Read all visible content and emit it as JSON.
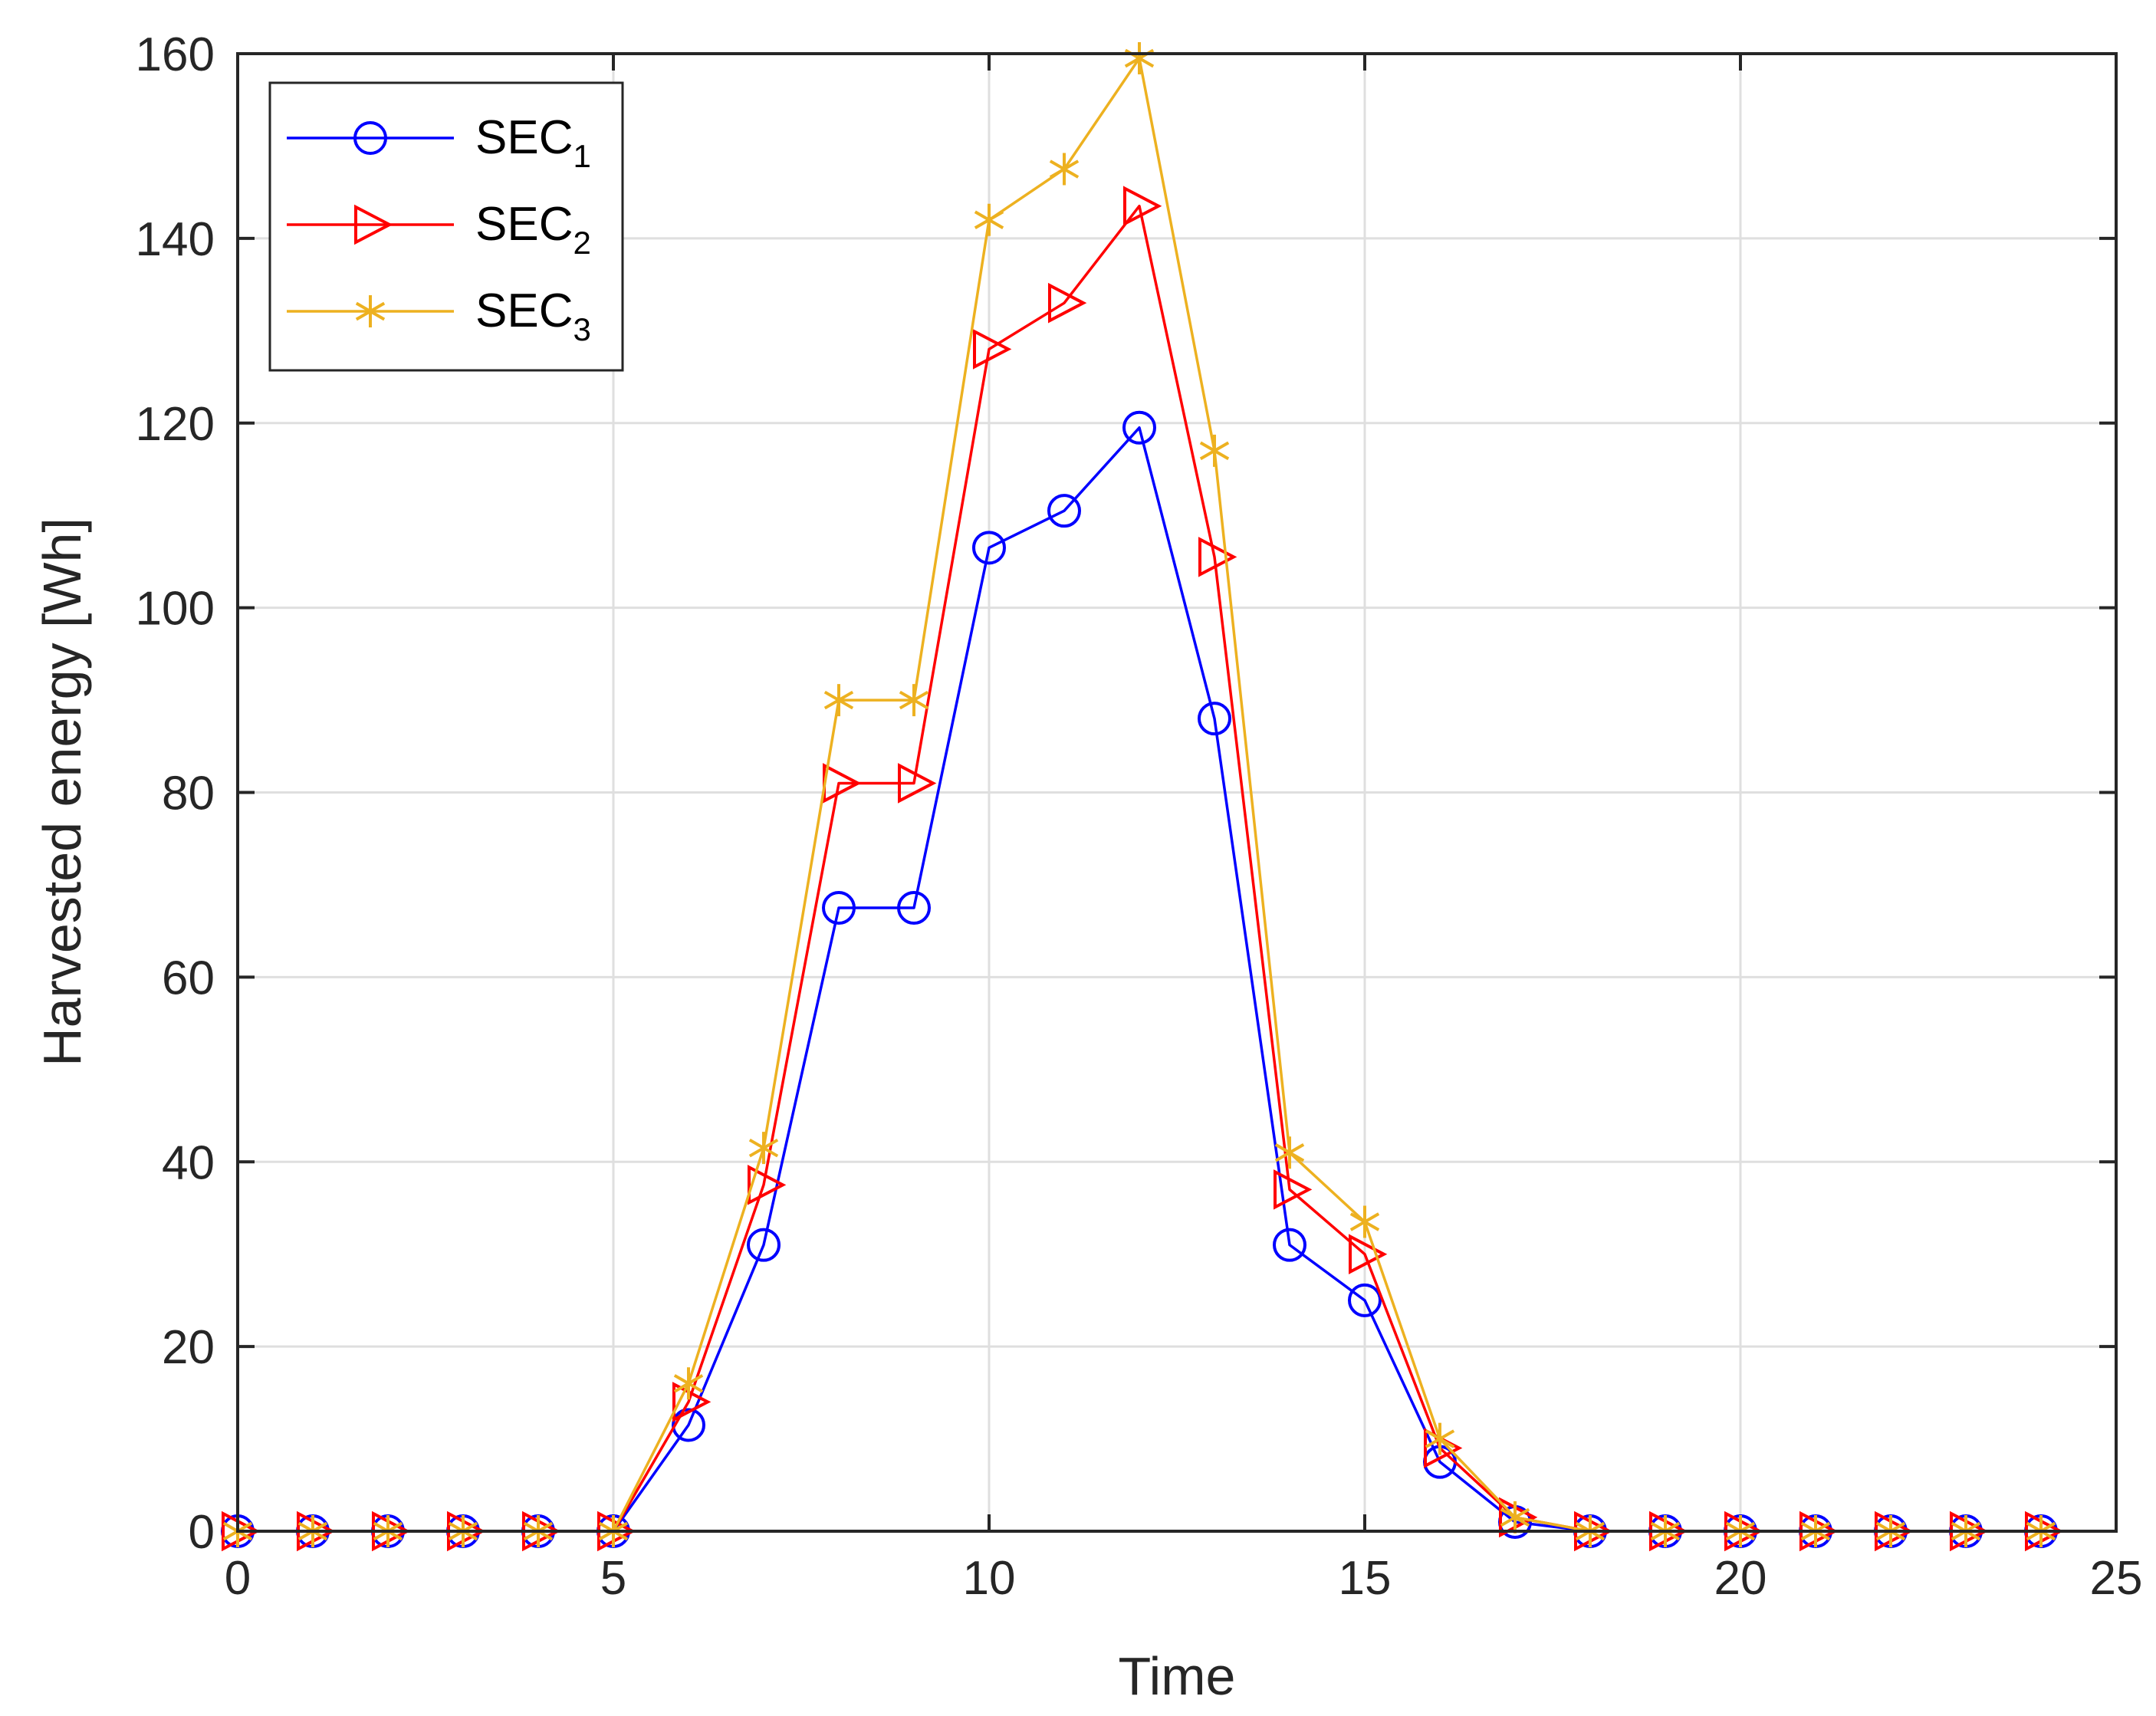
{
  "chart_data": {
    "type": "line",
    "title": "",
    "xlabel": "Time",
    "ylabel": "Harvested energy [Wh]",
    "xlim": [
      0,
      25
    ],
    "ylim": [
      0,
      160
    ],
    "xticks": [
      0,
      5,
      10,
      15,
      20,
      25
    ],
    "yticks": [
      0,
      20,
      40,
      60,
      80,
      100,
      120,
      140,
      160
    ],
    "grid": true,
    "legend_position": "top-left",
    "x": [
      0,
      1,
      2,
      3,
      4,
      5,
      6,
      7,
      8,
      9,
      10,
      11,
      12,
      13,
      14,
      15,
      16,
      17,
      18,
      19,
      20,
      21,
      22,
      23,
      24
    ],
    "series": [
      {
        "name": "SEC",
        "subscript": "1",
        "color": "#0000ff",
        "marker": "circle",
        "values": [
          0,
          0,
          0,
          0,
          0,
          0,
          11.5,
          31,
          67.5,
          67.5,
          106.5,
          110.5,
          119.5,
          88,
          31,
          25,
          7.5,
          1,
          0,
          0,
          0,
          0,
          0,
          0,
          0
        ]
      },
      {
        "name": "SEC",
        "subscript": "2",
        "color": "#ff0000",
        "marker": "triangle-right",
        "values": [
          0,
          0,
          0,
          0,
          0,
          0,
          14,
          37.5,
          81,
          81,
          128,
          133,
          143.5,
          105.5,
          37,
          30,
          9,
          1.5,
          0,
          0,
          0,
          0,
          0,
          0,
          0
        ]
      },
      {
        "name": "SEC",
        "subscript": "3",
        "color": "#edb120",
        "marker": "asterisk",
        "values": [
          0,
          0,
          0,
          0,
          0,
          0,
          16,
          41.5,
          90,
          90,
          142,
          147.5,
          159.5,
          117,
          41,
          33.5,
          10,
          1.5,
          0,
          0,
          0,
          0,
          0,
          0,
          0
        ]
      }
    ]
  }
}
